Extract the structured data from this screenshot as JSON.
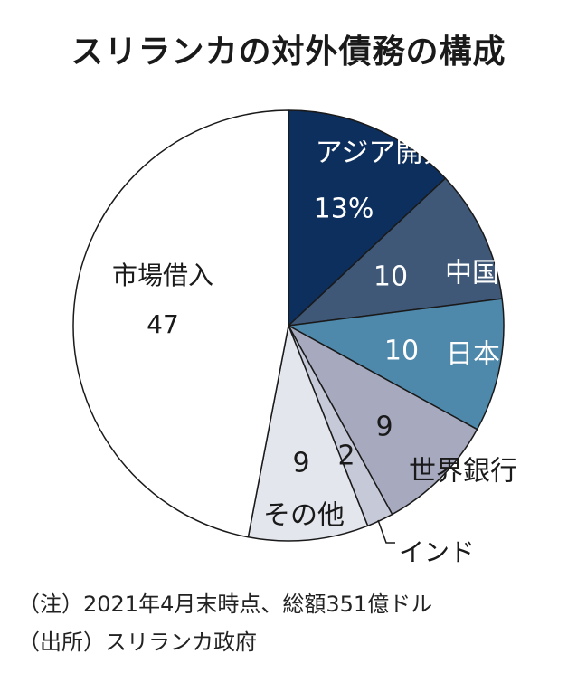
{
  "title": "スリランカの対外債務の構成",
  "chart_data": {
    "type": "pie",
    "title": "スリランカの対外債務の構成",
    "unit": "%",
    "slices": [
      {
        "label": "アジア開発銀行",
        "value": 13,
        "value_label": "13%",
        "color": "#0d2f5e"
      },
      {
        "label": "中国",
        "value": 10,
        "value_label": "10",
        "color": "#3f5878"
      },
      {
        "label": "日本",
        "value": 10,
        "value_label": "10",
        "color": "#4e89ac"
      },
      {
        "label": "世界銀行",
        "value": 9,
        "value_label": "9",
        "color": "#a7aabf"
      },
      {
        "label": "インド",
        "value": 2,
        "value_label": "2",
        "color": "#c6c9d8"
      },
      {
        "label": "その他",
        "value": 9,
        "value_label": "9",
        "color": "#e4e6ee"
      },
      {
        "label": "市場借入",
        "value": 47,
        "value_label": "47",
        "color": "#ffffff"
      }
    ]
  },
  "notes": {
    "note1": "（注）2021年4月末時点、総額351億ドル",
    "note2": "（出所）スリランカ政府"
  }
}
